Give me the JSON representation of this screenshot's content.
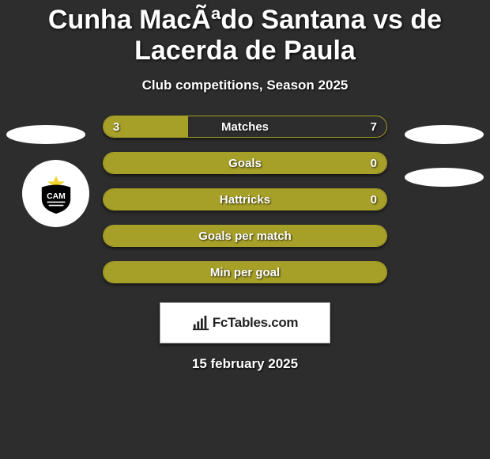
{
  "background_color": "#2d2d2d",
  "title": "Cunha MacÃªdo Santana vs de Lacerda de Paula",
  "subtitle": "Club competitions, Season 2025",
  "date": "15 february 2025",
  "accent_color": "#a7a028",
  "bar_border_color": "#a7a028",
  "left_fill_color": "#a7a028",
  "full_fill_color": "#a7a028",
  "club_badge": {
    "outer_color": "#000000",
    "star_color": "#f1d42e",
    "text": "CAM"
  },
  "brand": {
    "text": "FcTables.com",
    "icon_name": "bar-chart-icon"
  },
  "stats": [
    {
      "label": "Matches",
      "left_value": "3",
      "right_value": "7",
      "left_share": 0.3,
      "show_values": true,
      "mode": "split"
    },
    {
      "label": "Goals",
      "left_value": "",
      "right_value": "0",
      "left_share": 0,
      "show_values": true,
      "mode": "full"
    },
    {
      "label": "Hattricks",
      "left_value": "",
      "right_value": "0",
      "left_share": 0,
      "show_values": true,
      "mode": "full"
    },
    {
      "label": "Goals per match",
      "left_value": "",
      "right_value": "",
      "left_share": 0,
      "show_values": false,
      "mode": "full"
    },
    {
      "label": "Min per goal",
      "left_value": "",
      "right_value": "",
      "left_share": 0,
      "show_values": false,
      "mode": "full"
    }
  ]
}
